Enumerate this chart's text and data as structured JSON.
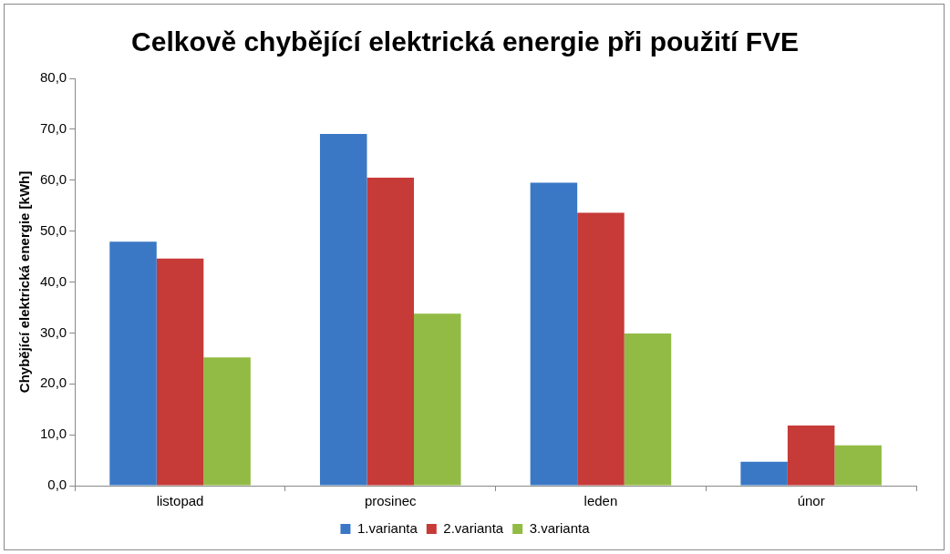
{
  "chart_data": {
    "type": "bar",
    "title": "Celkově chybějící elektrická energie při použití FVE",
    "ylabel": "Chybějící elektrická energie [kWh]",
    "categories": [
      "listopad",
      "prosinec",
      "leden",
      "únor"
    ],
    "series": [
      {
        "name": "1.varianta",
        "color": "#3a78c6",
        "values": [
          47.9,
          69.1,
          59.5,
          4.7
        ]
      },
      {
        "name": "2.varianta",
        "color": "#c63a37",
        "values": [
          44.6,
          60.5,
          53.6,
          11.8
        ]
      },
      {
        "name": "3.varianta",
        "color": "#92bb45",
        "values": [
          25.2,
          33.8,
          29.9,
          7.9
        ]
      }
    ],
    "ylim": [
      0,
      80
    ],
    "yticks": [
      {
        "value": 0,
        "label": "0,0"
      },
      {
        "value": 10,
        "label": "10,0"
      },
      {
        "value": 20,
        "label": "20,0"
      },
      {
        "value": 30,
        "label": "30,0"
      },
      {
        "value": 40,
        "label": "40,0"
      },
      {
        "value": 50,
        "label": "50,0"
      },
      {
        "value": 60,
        "label": "60,0"
      },
      {
        "value": 70,
        "label": "70,0"
      },
      {
        "value": 80,
        "label": "80,0"
      }
    ],
    "grid": false,
    "legend": "bottom"
  }
}
